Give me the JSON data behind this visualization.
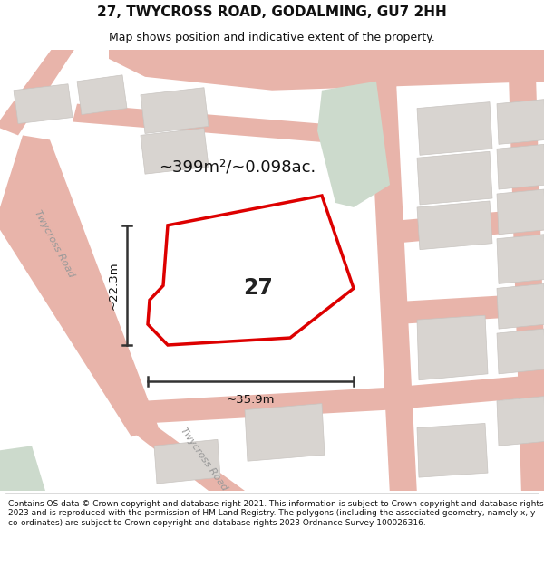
{
  "title": "27, TWYCROSS ROAD, GODALMING, GU7 2HH",
  "subtitle": "Map shows position and indicative extent of the property.",
  "footer": "Contains OS data © Crown copyright and database right 2021. This information is subject to Crown copyright and database rights 2023 and is reproduced with the permission of HM Land Registry. The polygons (including the associated geometry, namely x, y co-ordinates) are subject to Crown copyright and database rights 2023 Ordnance Survey 100026316.",
  "map_bg": "#f7f3ee",
  "road_color": "#e8b4aa",
  "building_fill": "#d8d4d0",
  "building_edge": "#c8c4c0",
  "green_fill": "#ccdacc",
  "highlight_fill": "#ffffff",
  "highlight_stroke": "#dd0000",
  "area_label": "~399m²/~0.098ac.",
  "number_label": "27",
  "dim_h": "~22.3m",
  "dim_w": "~35.9m",
  "road_label_1": "Twycross Road",
  "road_label_2": "Twycross Road",
  "title_fontsize": 11,
  "subtitle_fontsize": 9,
  "footer_fontsize": 6.5
}
